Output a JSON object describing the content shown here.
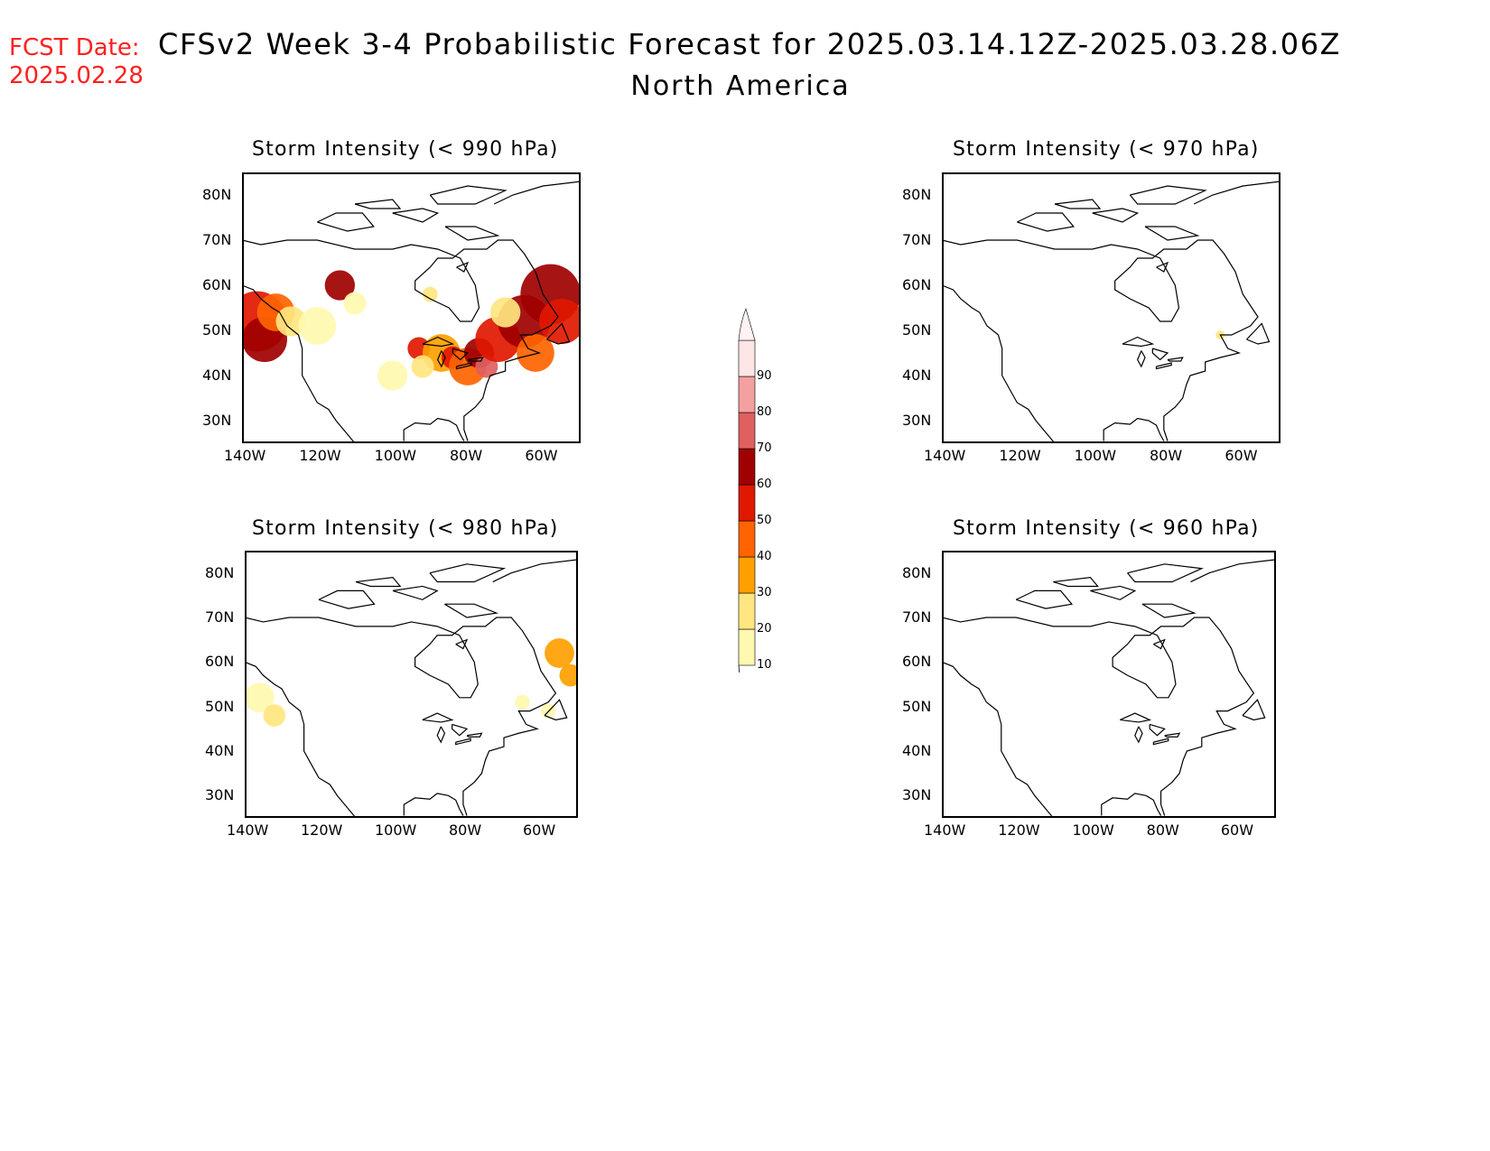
{
  "header": {
    "fcst_label": "FCST Date:",
    "fcst_date": "2025.02.28",
    "title": "CFSv2 Week 3-4 Probabilistic Forecast for 2025.03.14.12Z-2025.03.28.06Z",
    "subtitle": "North America"
  },
  "panels": [
    {
      "title": "Storm Intensity (< 990 hPa)",
      "threshold_hPa": 990
    },
    {
      "title": "Storm Intensity (< 970 hPa)",
      "threshold_hPa": 970
    },
    {
      "title": "Storm Intensity (< 980 hPa)",
      "threshold_hPa": 980
    },
    {
      "title": "Storm Intensity (< 960 hPa)",
      "threshold_hPa": 960
    }
  ],
  "axes": {
    "lat_labels": [
      "80N",
      "70N",
      "60N",
      "50N",
      "40N",
      "30N"
    ],
    "lon_labels": [
      "140W",
      "120W",
      "100W",
      "80W",
      "60W"
    ]
  },
  "colorbar": {
    "labels": [
      "10",
      "20",
      "30",
      "40",
      "50",
      "60",
      "70",
      "80",
      "90"
    ],
    "colors": [
      "#fff8b0",
      "#ffe680",
      "#ffa000",
      "#ff6400",
      "#e01800",
      "#a00000",
      "#e06060",
      "#f4a0a0",
      "#ffe6e6"
    ]
  },
  "colors": {
    "fcst_text": "#ff2020",
    "coastline": "#000000"
  }
}
